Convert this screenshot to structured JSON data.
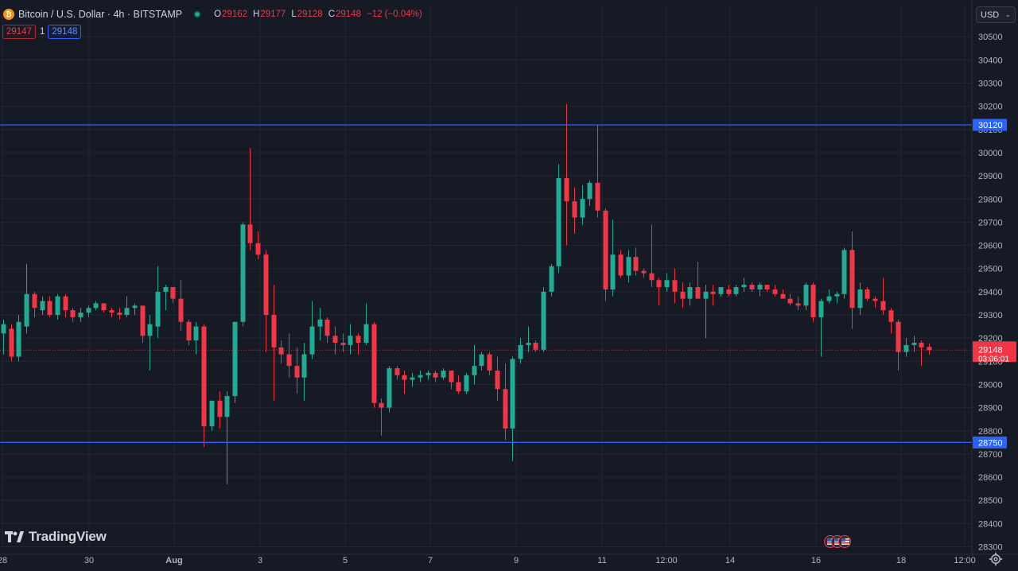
{
  "legend": {
    "symbol_icon": "bitcoin-icon",
    "title": "Bitcoin / U.S. Dollar · 4h · BITSTAMP",
    "o_key": "O",
    "o_val": "29162",
    "h_key": "H",
    "h_val": "29177",
    "l_key": "L",
    "l_val": "29128",
    "c_key": "C",
    "c_val": "29148",
    "change": "−12 (−0.04%)"
  },
  "spread": {
    "bid": "29147",
    "spread": "1",
    "ask": "29148"
  },
  "currency": "USD",
  "brand": "TradingView",
  "colors": {
    "background": "#161a25",
    "grid": "#222633",
    "up": "#22ab94",
    "down": "#f23645",
    "hline": "#2962ff",
    "text": "#d1d4dc",
    "axis_text": "#b2b5be"
  },
  "chart_data": {
    "type": "candlestick",
    "interval": "4h",
    "y_axis": {
      "ylim": [
        28270,
        30570
      ],
      "ticks": [
        30500,
        30400,
        30300,
        30200,
        30100,
        30000,
        29900,
        29800,
        29700,
        29600,
        29500,
        29400,
        29300,
        29200,
        29100,
        29000,
        28900,
        28800,
        28700,
        28600,
        28500,
        28400,
        28300
      ]
    },
    "x_axis": {
      "tick_labels": [
        "28",
        "30",
        "Aug",
        "3",
        "5",
        "7",
        "9",
        "11",
        "12:00",
        "14",
        "16",
        "18",
        "12:00"
      ],
      "bold_labels": [
        "Aug"
      ]
    },
    "horizontal_lines": [
      {
        "label": "30120",
        "value": 30120
      },
      {
        "label": "28750",
        "value": 28750
      }
    ],
    "last_price": {
      "value": 29148,
      "label": "29148",
      "countdown": "03:06:01"
    },
    "candles_ohlc": [
      [
        29220,
        29280,
        29130,
        29260
      ],
      [
        29240,
        29260,
        29100,
        29120
      ],
      [
        29120,
        29300,
        29100,
        29270
      ],
      [
        29250,
        29520,
        29220,
        29390
      ],
      [
        29390,
        29400,
        29290,
        29330
      ],
      [
        29320,
        29380,
        29300,
        29360
      ],
      [
        29360,
        29380,
        29290,
        29300
      ],
      [
        29300,
        29390,
        29280,
        29380
      ],
      [
        29380,
        29390,
        29290,
        29320
      ],
      [
        29320,
        29330,
        29270,
        29290
      ],
      [
        29290,
        29330,
        29270,
        29310
      ],
      [
        29310,
        29340,
        29290,
        29330
      ],
      [
        29330,
        29360,
        29320,
        29350
      ],
      [
        29350,
        29350,
        29310,
        29320
      ],
      [
        29320,
        29330,
        29290,
        29310
      ],
      [
        29310,
        29330,
        29280,
        29300
      ],
      [
        29300,
        29380,
        29290,
        29330
      ],
      [
        29330,
        29350,
        29300,
        29340
      ],
      [
        29340,
        29340,
        29180,
        29210
      ],
      [
        29210,
        29300,
        29060,
        29260
      ],
      [
        29250,
        29510,
        29200,
        29400
      ],
      [
        29400,
        29430,
        29320,
        29420
      ],
      [
        29420,
        29420,
        29350,
        29370
      ],
      [
        29370,
        29450,
        29230,
        29270
      ],
      [
        29270,
        29280,
        29170,
        29190
      ],
      [
        29190,
        29270,
        29130,
        29250
      ],
      [
        29250,
        29260,
        28730,
        28820
      ],
      [
        28820,
        28930,
        28800,
        28930
      ],
      [
        28930,
        28970,
        28810,
        28860
      ],
      [
        28860,
        28970,
        28570,
        28950
      ],
      [
        28950,
        29270,
        28920,
        29270
      ],
      [
        29270,
        29700,
        29250,
        29690
      ],
      [
        29690,
        30020,
        29580,
        29610
      ],
      [
        29610,
        29660,
        29540,
        29560
      ],
      [
        29560,
        29580,
        29140,
        29300
      ],
      [
        29300,
        29430,
        28930,
        29160
      ],
      [
        29160,
        29190,
        29090,
        29130
      ],
      [
        29130,
        29220,
        29030,
        29080
      ],
      [
        29080,
        29160,
        28960,
        29030
      ],
      [
        29030,
        29180,
        28930,
        29130
      ],
      [
        29130,
        29360,
        29110,
        29250
      ],
      [
        29250,
        29330,
        29190,
        29280
      ],
      [
        29280,
        29290,
        29180,
        29210
      ],
      [
        29210,
        29250,
        29130,
        29180
      ],
      [
        29180,
        29220,
        29140,
        29170
      ],
      [
        29170,
        29260,
        29130,
        29210
      ],
      [
        29210,
        29220,
        29130,
        29180
      ],
      [
        29180,
        29350,
        29170,
        29260
      ],
      [
        29260,
        29270,
        28900,
        28920
      ],
      [
        28920,
        28940,
        28780,
        28900
      ],
      [
        28900,
        29080,
        28880,
        29070
      ],
      [
        29070,
        29080,
        29020,
        29040
      ],
      [
        29040,
        29060,
        28960,
        29020
      ],
      [
        29020,
        29050,
        28990,
        29030
      ],
      [
        29030,
        29060,
        29010,
        29040
      ],
      [
        29040,
        29060,
        29020,
        29050
      ],
      [
        29050,
        29060,
        29010,
        29030
      ],
      [
        29030,
        29070,
        29020,
        29060
      ],
      [
        29060,
        29060,
        28980,
        29010
      ],
      [
        29010,
        29040,
        28960,
        28970
      ],
      [
        28970,
        29050,
        28960,
        29040
      ],
      [
        29040,
        29170,
        29000,
        29080
      ],
      [
        29080,
        29140,
        29060,
        29130
      ],
      [
        29130,
        29140,
        29040,
        29060
      ],
      [
        29060,
        29120,
        28930,
        28980
      ],
      [
        28980,
        29090,
        28760,
        28810
      ],
      [
        28810,
        29120,
        28670,
        29110
      ],
      [
        29110,
        29200,
        29090,
        29170
      ],
      [
        29170,
        29250,
        29140,
        29180
      ],
      [
        29180,
        29190,
        29140,
        29150
      ],
      [
        29150,
        29420,
        29140,
        29400
      ],
      [
        29400,
        29520,
        29380,
        29510
      ],
      [
        29510,
        29950,
        29480,
        29890
      ],
      [
        29890,
        30210,
        29600,
        29790
      ],
      [
        29790,
        29850,
        29650,
        29720
      ],
      [
        29720,
        29860,
        29690,
        29800
      ],
      [
        29800,
        29880,
        29770,
        29870
      ],
      [
        29870,
        30120,
        29720,
        29750
      ],
      [
        29750,
        29760,
        29360,
        29410
      ],
      [
        29410,
        29710,
        29380,
        29560
      ],
      [
        29560,
        29580,
        29460,
        29470
      ],
      [
        29470,
        29580,
        29440,
        29550
      ],
      [
        29550,
        29590,
        29470,
        29490
      ],
      [
        29490,
        29500,
        29460,
        29480
      ],
      [
        29480,
        29690,
        29420,
        29450
      ],
      [
        29450,
        29460,
        29340,
        29420
      ],
      [
        29420,
        29480,
        29400,
        29450
      ],
      [
        29450,
        29500,
        29350,
        29400
      ],
      [
        29400,
        29440,
        29330,
        29370
      ],
      [
        29370,
        29440,
        29340,
        29420
      ],
      [
        29420,
        29530,
        29390,
        29370
      ],
      [
        29370,
        29430,
        29200,
        29400
      ],
      [
        29400,
        29430,
        29340,
        29390
      ],
      [
        29390,
        29410,
        29380,
        29420
      ],
      [
        29410,
        29430,
        29380,
        29390
      ],
      [
        29390,
        29430,
        29380,
        29420
      ],
      [
        29420,
        29460,
        29400,
        29430
      ],
      [
        29430,
        29440,
        29400,
        29410
      ],
      [
        29410,
        29440,
        29380,
        29430
      ],
      [
        29430,
        29430,
        29400,
        29410
      ],
      [
        29410,
        29430,
        29380,
        29390
      ],
      [
        29390,
        29410,
        29370,
        29370
      ],
      [
        29370,
        29390,
        29340,
        29350
      ],
      [
        29350,
        29380,
        29320,
        29340
      ],
      [
        29340,
        29440,
        29320,
        29430
      ],
      [
        29430,
        29440,
        29270,
        29290
      ],
      [
        29290,
        29370,
        29120,
        29360
      ],
      [
        29360,
        29410,
        29350,
        29380
      ],
      [
        29380,
        29400,
        29350,
        29390
      ],
      [
        29390,
        29590,
        29370,
        29580
      ],
      [
        29580,
        29660,
        29240,
        29330
      ],
      [
        29330,
        29440,
        29300,
        29410
      ],
      [
        29410,
        29420,
        29360,
        29370
      ],
      [
        29370,
        29380,
        29330,
        29360
      ],
      [
        29360,
        29460,
        29300,
        29320
      ],
      [
        29320,
        29330,
        29220,
        29270
      ],
      [
        29270,
        29280,
        29060,
        29140
      ],
      [
        29140,
        29200,
        29120,
        29170
      ],
      [
        29170,
        29210,
        29140,
        29180
      ],
      [
        29180,
        29190,
        29080,
        29160
      ],
      [
        29162,
        29177,
        29128,
        29148
      ]
    ]
  }
}
